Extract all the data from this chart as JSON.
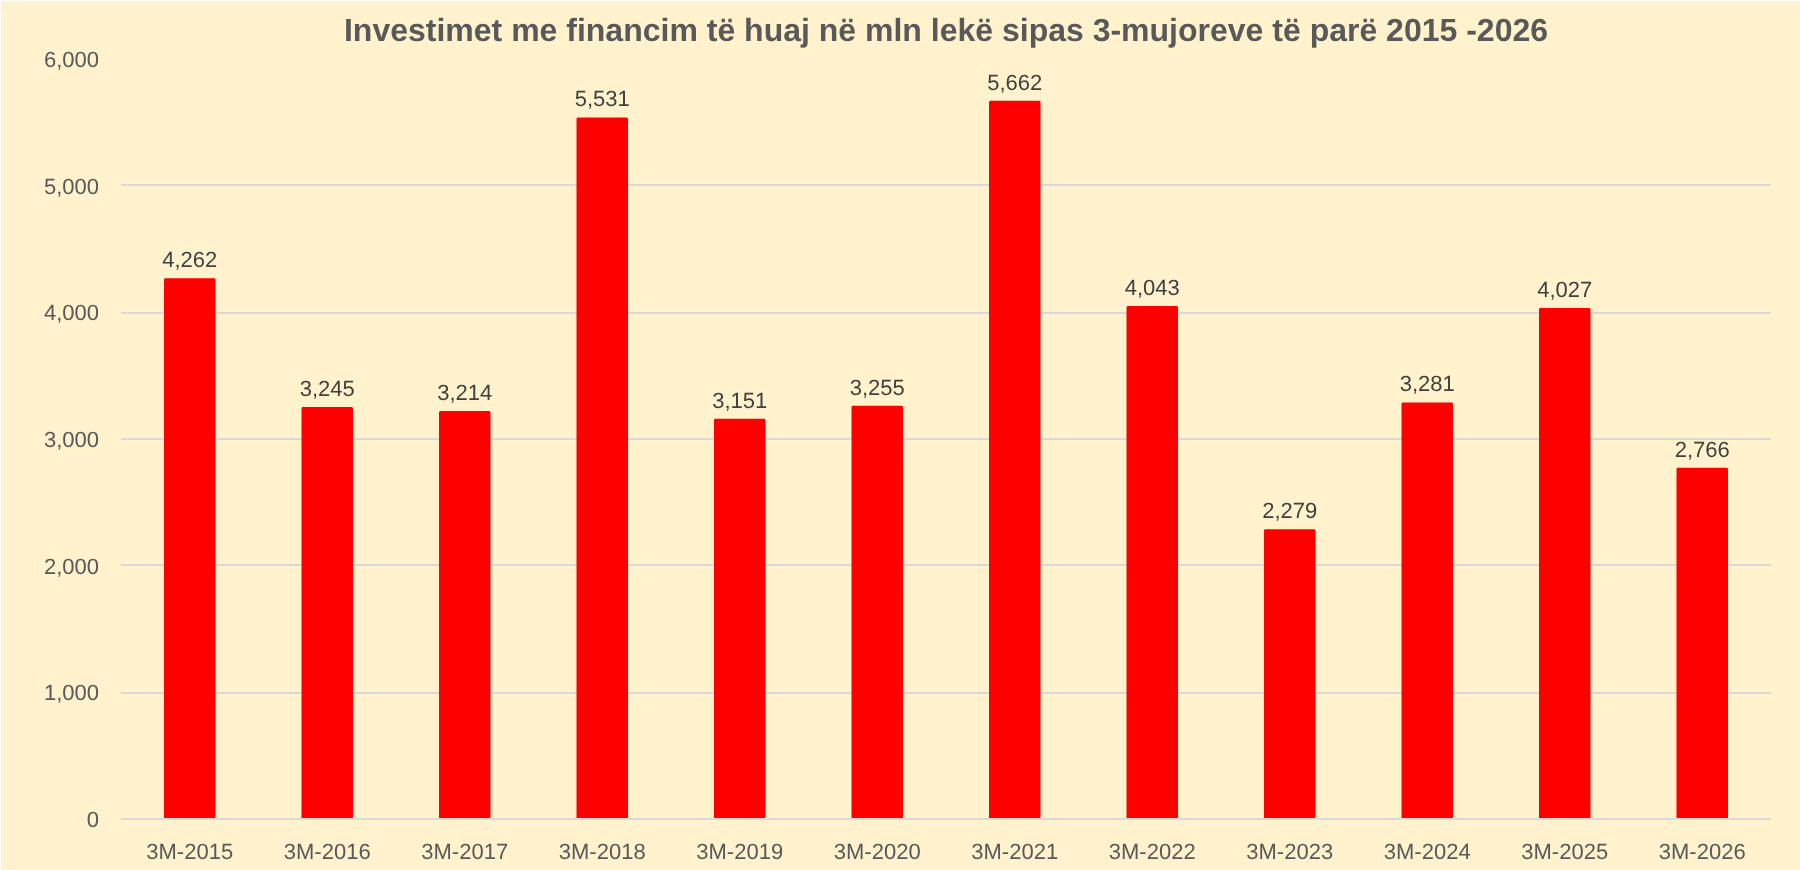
{
  "chart_data": {
    "type": "bar",
    "title": "Investimet me financim të huaj në mln lekë sipas 3-mujoreve të parë 2015 -2026",
    "categories": [
      "3M-2015",
      "3M-2016",
      "3M-2017",
      "3M-2018",
      "3M-2019",
      "3M-2020",
      "3M-2021",
      "3M-2022",
      "3M-2023",
      "3M-2024",
      "3M-2025",
      "3M-2026"
    ],
    "values": [
      4262,
      3245,
      3214,
      5531,
      3151,
      3255,
      5662,
      4043,
      2279,
      3281,
      4027,
      2766
    ],
    "color": "#ff0000",
    "ylim": [
      0,
      6000
    ],
    "yticks": [
      {
        "value": 0,
        "label": "0"
      },
      {
        "value": 1000,
        "label": "1,000"
      },
      {
        "value": 2000,
        "label": "2,000"
      },
      {
        "value": 3000,
        "label": "3,000"
      },
      {
        "value": 4000,
        "label": "4,000"
      },
      {
        "value": 5000,
        "label": "5,000"
      },
      {
        "value": 6000,
        "label": "6,000"
      }
    ],
    "grid": "y",
    "value_labels": [
      "4,262",
      "3,245",
      "3,214",
      "5,531",
      "3,151",
      "3,255",
      "5,662",
      "4,043",
      "2,279",
      "3,281",
      "4,027",
      "2,766"
    ]
  }
}
